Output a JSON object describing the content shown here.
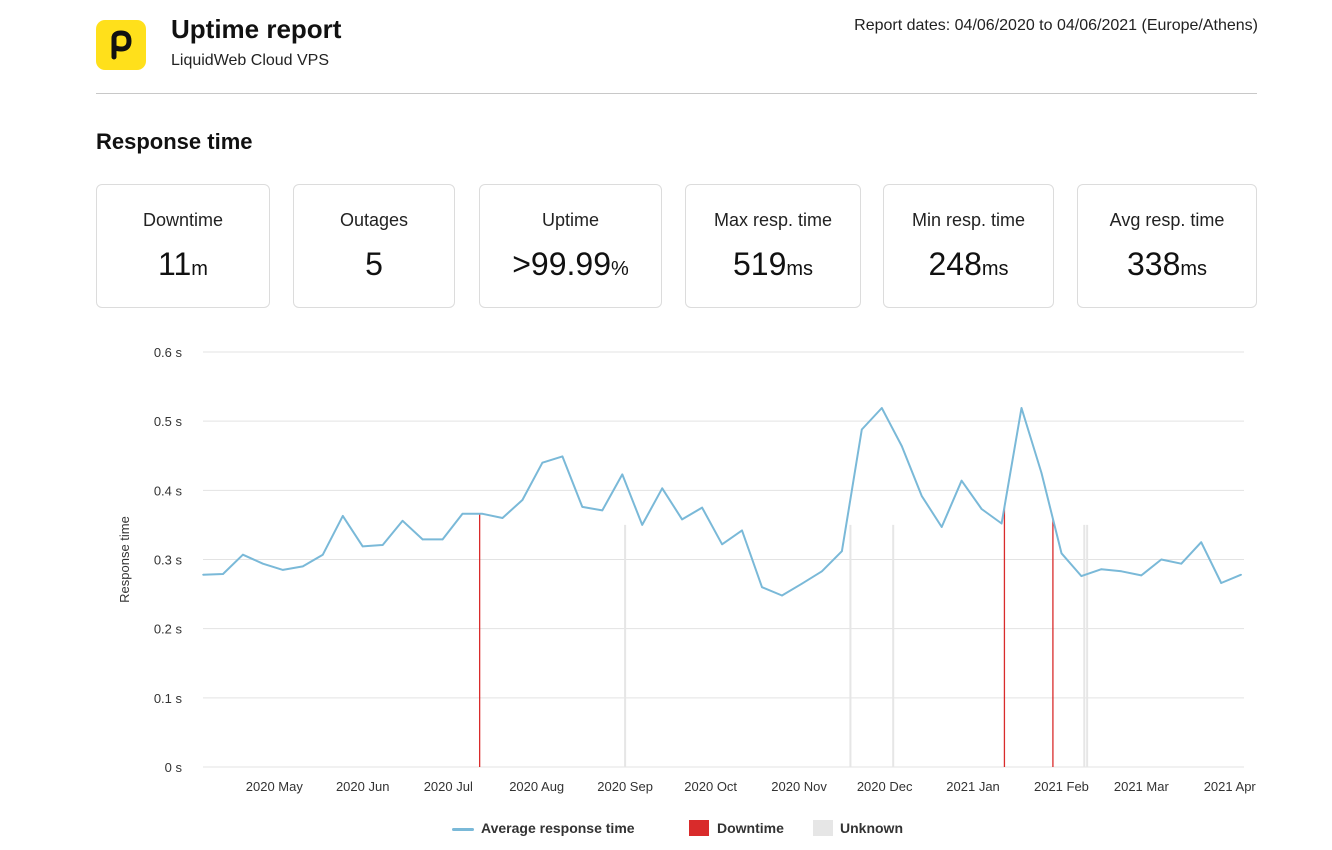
{
  "header": {
    "title": "Uptime report",
    "subtitle": "LiquidWeb Cloud VPS",
    "report_dates": "Report dates: 04/06/2020 to 04/06/2021 (Europe/Athens)",
    "logo_letter": "p",
    "logo_color": "#ffe01b"
  },
  "section_title": "Response time",
  "stats": [
    {
      "label": "Downtime",
      "value": "11",
      "unit": "m"
    },
    {
      "label": "Outages",
      "value": "5",
      "unit": ""
    },
    {
      "label": "Uptime",
      "value": ">99.99",
      "unit": "%"
    },
    {
      "label": "Max resp. time",
      "value": "519",
      "unit": "ms"
    },
    {
      "label": "Min resp. time",
      "value": "248",
      "unit": "ms"
    },
    {
      "label": "Avg resp. time",
      "value": "338",
      "unit": "ms"
    }
  ],
  "legend": {
    "average": "Average response time",
    "downtime": "Downtime",
    "unknown": "Unknown"
  },
  "colors": {
    "line": "#7ab9d8",
    "downtime": "#d92b2b",
    "unknown": "#e6e6e6",
    "grid": "#e3e3e3"
  },
  "chart_data": {
    "type": "line",
    "title": "",
    "xlabel": "",
    "ylabel": "Response time",
    "ylim": [
      0,
      0.6
    ],
    "y_unit": "s",
    "y_ticks": [
      0,
      0.1,
      0.2,
      0.3,
      0.4,
      0.5,
      0.6
    ],
    "y_tick_labels": [
      "0 s",
      "0.1 s",
      "0.2 s",
      "0.3 s",
      "0.4 s",
      "0.5 s",
      "0.6 s"
    ],
    "x_range": [
      "2020-04-06",
      "2021-04-06"
    ],
    "x_ticks": [
      {
        "date": "2020-05-01",
        "label": "2020 May"
      },
      {
        "date": "2020-06-01",
        "label": "2020 Jun"
      },
      {
        "date": "2020-07-01",
        "label": "2020 Jul"
      },
      {
        "date": "2020-08-01",
        "label": "2020 Aug"
      },
      {
        "date": "2020-09-01",
        "label": "2020 Sep"
      },
      {
        "date": "2020-10-01",
        "label": "2020 Oct"
      },
      {
        "date": "2020-11-01",
        "label": "2020 Nov"
      },
      {
        "date": "2020-12-01",
        "label": "2020 Dec"
      },
      {
        "date": "2021-01-01",
        "label": "2021 Jan"
      },
      {
        "date": "2021-02-01",
        "label": "2021 Feb"
      },
      {
        "date": "2021-03-01",
        "label": "2021 Mar"
      },
      {
        "date": "2021-04-01",
        "label": "2021 Apr"
      }
    ],
    "grid": true,
    "legend_position": "bottom",
    "series": [
      {
        "name": "Average response time",
        "points": [
          [
            "2020-04-06",
            0.278
          ],
          [
            "2020-04-13",
            0.279
          ],
          [
            "2020-04-20",
            0.307
          ],
          [
            "2020-04-27",
            0.294
          ],
          [
            "2020-05-04",
            0.285
          ],
          [
            "2020-05-11",
            0.29
          ],
          [
            "2020-05-18",
            0.307
          ],
          [
            "2020-05-25",
            0.363
          ],
          [
            "2020-06-01",
            0.319
          ],
          [
            "2020-06-08",
            0.321
          ],
          [
            "2020-06-15",
            0.356
          ],
          [
            "2020-06-22",
            0.329
          ],
          [
            "2020-06-29",
            0.329
          ],
          [
            "2020-07-06",
            0.366
          ],
          [
            "2020-07-13",
            0.366
          ],
          [
            "2020-07-20",
            0.36
          ],
          [
            "2020-07-27",
            0.386
          ],
          [
            "2020-08-03",
            0.44
          ],
          [
            "2020-08-10",
            0.449
          ],
          [
            "2020-08-17",
            0.376
          ],
          [
            "2020-08-24",
            0.371
          ],
          [
            "2020-08-31",
            0.423
          ],
          [
            "2020-09-07",
            0.35
          ],
          [
            "2020-09-14",
            0.403
          ],
          [
            "2020-09-21",
            0.358
          ],
          [
            "2020-09-28",
            0.375
          ],
          [
            "2020-10-05",
            0.322
          ],
          [
            "2020-10-12",
            0.342
          ],
          [
            "2020-10-19",
            0.26
          ],
          [
            "2020-10-26",
            0.248
          ],
          [
            "2020-11-02",
            0.265
          ],
          [
            "2020-11-09",
            0.283
          ],
          [
            "2020-11-16",
            0.312
          ],
          [
            "2020-11-23",
            0.488
          ],
          [
            "2020-11-30",
            0.519
          ],
          [
            "2020-12-07",
            0.464
          ],
          [
            "2020-12-14",
            0.392
          ],
          [
            "2020-12-21",
            0.347
          ],
          [
            "2020-12-28",
            0.414
          ],
          [
            "2021-01-04",
            0.373
          ],
          [
            "2021-01-11",
            0.352
          ],
          [
            "2021-01-18",
            0.519
          ],
          [
            "2021-01-25",
            0.425
          ],
          [
            "2021-02-01",
            0.309
          ],
          [
            "2021-02-08",
            0.276
          ],
          [
            "2021-02-15",
            0.286
          ],
          [
            "2021-02-22",
            0.283
          ],
          [
            "2021-03-01",
            0.277
          ],
          [
            "2021-03-08",
            0.3
          ],
          [
            "2021-03-15",
            0.294
          ],
          [
            "2021-03-22",
            0.325
          ],
          [
            "2021-03-29",
            0.266
          ],
          [
            "2021-04-05",
            0.278
          ]
        ]
      }
    ],
    "downtime_markers": [
      "2020-07-12",
      "2021-01-12",
      "2021-01-29"
    ],
    "unknown_markers": [
      "2020-09-01",
      "2020-11-19",
      "2020-12-04",
      "2021-02-09",
      "2021-02-10"
    ]
  }
}
